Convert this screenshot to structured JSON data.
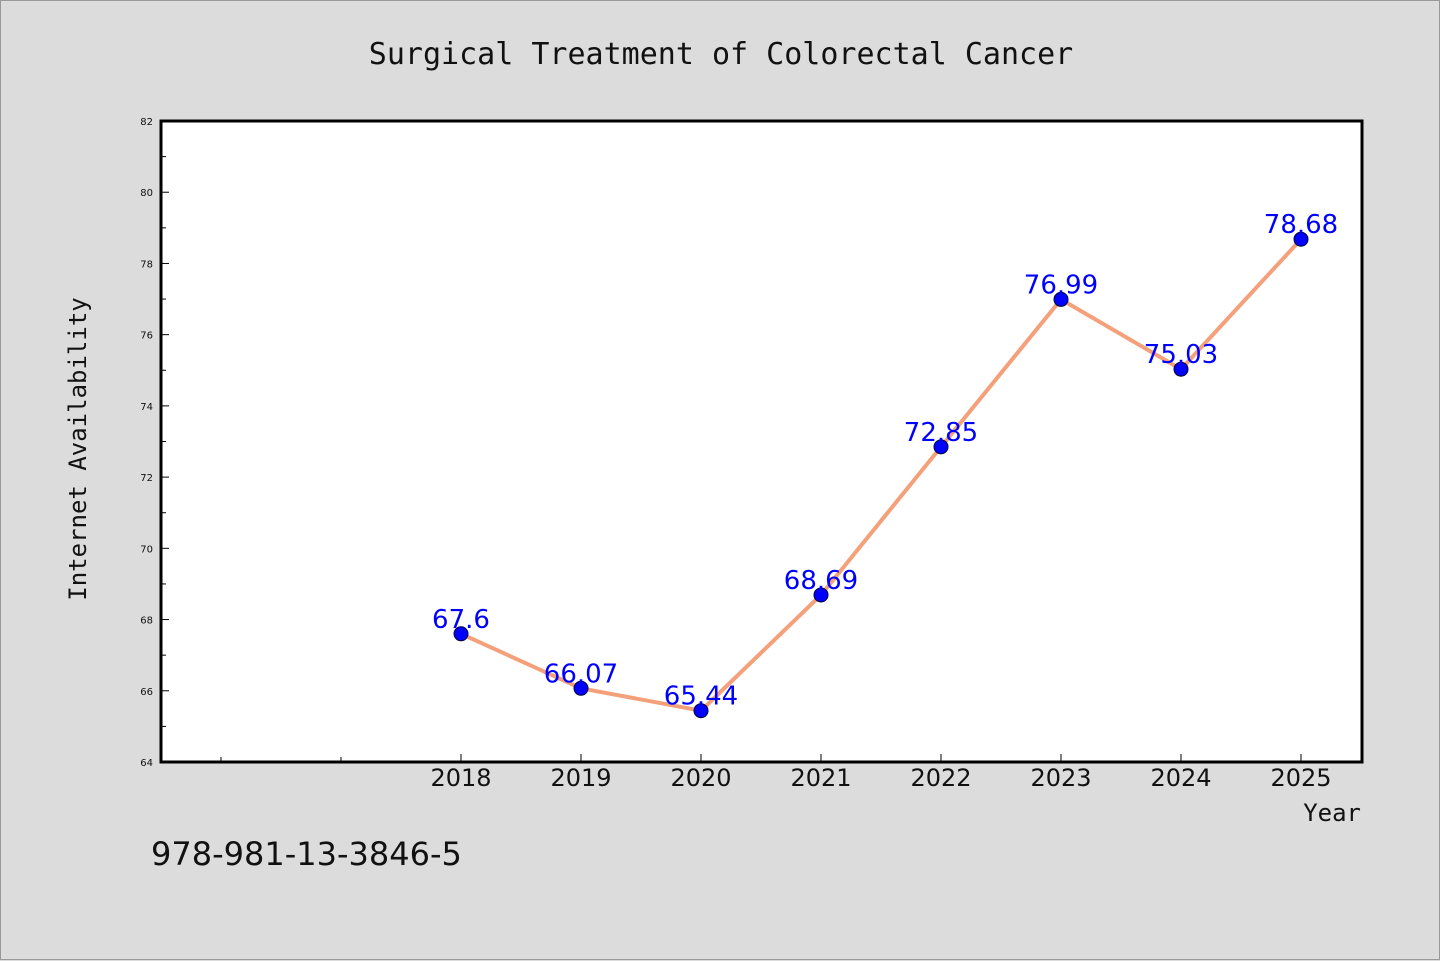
{
  "chart_data": {
    "type": "line",
    "title": "Surgical Treatment of Colorectal Cancer",
    "xlabel": "Year",
    "ylabel": "Internet Availability",
    "x": [
      "2018",
      "2019",
      "2020",
      "2021",
      "2022",
      "2023",
      "2024",
      "2025"
    ],
    "series": [
      {
        "values": [
          67.6,
          66.07,
          65.44,
          68.69,
          72.85,
          76.99,
          75.03,
          78.68
        ]
      }
    ],
    "data_labels": [
      "67.6",
      "66.07",
      "65.44",
      "68.69",
      "72.85",
      "76.99",
      "75.03",
      "78.68"
    ],
    "ylim": [
      64,
      82
    ],
    "yticks": [
      "64",
      "66",
      "68",
      "70",
      "72",
      "74",
      "76",
      "78",
      "80",
      "82"
    ],
    "grid": false,
    "colors": {
      "line": "#f4a07a",
      "marker": "#0000ff",
      "label": "#0000ff",
      "background": "#dcdcdc",
      "plot": "#ffffff"
    }
  },
  "annotation": "978-981-13-3846-5"
}
